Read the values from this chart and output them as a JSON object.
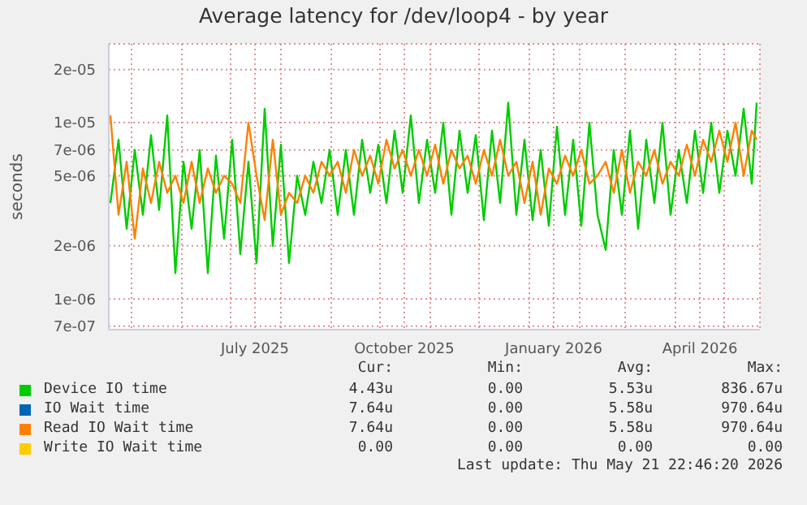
{
  "chart_data": {
    "type": "line",
    "title": "Average latency for /dev/loop4 - by year",
    "ylabel": "seconds",
    "log": "y",
    "grid": true,
    "legend": "bottom",
    "line_style": "solid",
    "marker": "none",
    "x": [
      "2025-04-18",
      "2025-04-23",
      "2025-04-28",
      "2025-05-03",
      "2025-05-08",
      "2025-05-13",
      "2025-05-18",
      "2025-05-23",
      "2025-05-28",
      "2025-06-02",
      "2025-06-07",
      "2025-06-12",
      "2025-06-17",
      "2025-06-22",
      "2025-06-27",
      "2025-07-02",
      "2025-07-07",
      "2025-07-12",
      "2025-07-17",
      "2025-07-22",
      "2025-07-27",
      "2025-08-01",
      "2025-08-06",
      "2025-08-11",
      "2025-08-16",
      "2025-08-21",
      "2025-08-26",
      "2025-08-31",
      "2025-09-05",
      "2025-09-10",
      "2025-09-15",
      "2025-09-20",
      "2025-09-25",
      "2025-09-30",
      "2025-10-05",
      "2025-10-10",
      "2025-10-15",
      "2025-10-20",
      "2025-10-25",
      "2025-10-30",
      "2025-11-04",
      "2025-11-09",
      "2025-11-14",
      "2025-11-19",
      "2025-11-24",
      "2025-11-29",
      "2025-12-04",
      "2025-12-09",
      "2025-12-14",
      "2025-12-19",
      "2025-12-24",
      "2025-12-29",
      "2026-01-03",
      "2026-01-08",
      "2026-01-13",
      "2026-01-18",
      "2026-01-23",
      "2026-01-28",
      "2026-02-02",
      "2026-02-07",
      "2026-02-12",
      "2026-02-17",
      "2026-02-22",
      "2026-02-27",
      "2026-03-04",
      "2026-03-09",
      "2026-03-14",
      "2026-03-19",
      "2026-03-24",
      "2026-03-29",
      "2026-04-03",
      "2026-04-08",
      "2026-04-13",
      "2026-04-18",
      "2026-04-23",
      "2026-04-28",
      "2026-05-03",
      "2026-05-08",
      "2026-05-13",
      "2026-05-18",
      "2026-05-21"
    ],
    "series": [
      {
        "name": "Device IO time",
        "color": "#00cc00",
        "values": [
          3.5e-06,
          8e-06,
          2.5e-06,
          7e-06,
          3e-06,
          8.5e-06,
          3.2e-06,
          1.1e-05,
          1.4e-06,
          6e-06,
          2.5e-06,
          7e-06,
          1.4e-06,
          6.5e-06,
          2.2e-06,
          8e-06,
          1.8e-06,
          6e-06,
          1.6e-06,
          1.2e-05,
          2e-06,
          7.5e-06,
          1.6e-06,
          5e-06,
          3e-06,
          6e-06,
          3.5e-06,
          7e-06,
          3e-06,
          7e-06,
          3e-06,
          8e-06,
          4e-06,
          7.5e-06,
          3.5e-06,
          9e-06,
          4e-06,
          1.1e-05,
          3.5e-06,
          8e-06,
          4e-06,
          1e-05,
          3e-06,
          9e-06,
          4e-06,
          8.5e-06,
          2.8e-06,
          9e-06,
          3.5e-06,
          1.3e-05,
          3e-06,
          8e-06,
          2.8e-06,
          7e-06,
          2.6e-06,
          9.5e-06,
          3e-06,
          8e-06,
          2.6e-06,
          1e-05,
          3e-06,
          1.9e-06,
          7e-06,
          3e-06,
          9e-06,
          2.5e-06,
          8e-06,
          3.5e-06,
          1e-05,
          3e-06,
          7e-06,
          3.5e-06,
          9e-06,
          4e-06,
          1e-05,
          4e-06,
          9e-06,
          5e-06,
          1.2e-05,
          4.5e-06,
          1.3e-05
        ]
      },
      {
        "name": "IO Wait time",
        "color": "#0066b3",
        "values": [
          null,
          null,
          null,
          null,
          null,
          null,
          null,
          null,
          null,
          null,
          null,
          null,
          null,
          null,
          null,
          null,
          null,
          null,
          null,
          null,
          null,
          null,
          null,
          null,
          null,
          null,
          null,
          null,
          null,
          null,
          null,
          null,
          null,
          null,
          null,
          null,
          null,
          null,
          null,
          null,
          null,
          null,
          null,
          null,
          null,
          null,
          null,
          null,
          null,
          null,
          null,
          null,
          null,
          null,
          null,
          null,
          null,
          null,
          null,
          null,
          null,
          null,
          null,
          null,
          null,
          null,
          null,
          null,
          null,
          null,
          null,
          null,
          null,
          null,
          null,
          null,
          null,
          null,
          null,
          null,
          null
        ]
      },
      {
        "name": "Read IO Wait time",
        "color": "#ff8000",
        "values": [
          1.1e-05,
          3e-06,
          6e-06,
          2.2e-06,
          5.5e-06,
          3.5e-06,
          6e-06,
          4e-06,
          5e-06,
          3.5e-06,
          6e-06,
          3.5e-06,
          5.5e-06,
          4e-06,
          5e-06,
          4.5e-06,
          3.5e-06,
          1e-05,
          5e-06,
          2.8e-06,
          8e-06,
          3e-06,
          4e-06,
          3.5e-06,
          5e-06,
          4e-06,
          6e-06,
          5e-06,
          6e-06,
          4e-06,
          7e-06,
          5e-06,
          6.5e-06,
          4.5e-06,
          8e-06,
          5.5e-06,
          7e-06,
          5e-06,
          7e-06,
          5e-06,
          7.5e-06,
          4.5e-06,
          7e-06,
          5.5e-06,
          6.5e-06,
          4.5e-06,
          7e-06,
          5e-06,
          8e-06,
          5e-06,
          6e-06,
          3.5e-06,
          6e-06,
          3e-06,
          5.5e-06,
          4.5e-06,
          6.5e-06,
          5e-06,
          7e-06,
          4.5e-06,
          5e-06,
          6e-06,
          4e-06,
          7e-06,
          4e-06,
          6e-06,
          5e-06,
          7e-06,
          4.5e-06,
          6e-06,
          5e-06,
          7.5e-06,
          5e-06,
          8e-06,
          6e-06,
          9e-06,
          6e-06,
          1e-05,
          5e-06,
          9e-06,
          8e-06
        ]
      },
      {
        "name": "Write IO Wait time",
        "color": "#ffcc00",
        "values": [
          null,
          null,
          null,
          null,
          null,
          null,
          null,
          null,
          null,
          null,
          null,
          null,
          null,
          null,
          null,
          null,
          null,
          null,
          null,
          null,
          null,
          null,
          null,
          null,
          null,
          null,
          null,
          null,
          null,
          null,
          null,
          null,
          null,
          null,
          null,
          null,
          null,
          null,
          null,
          null,
          null,
          null,
          null,
          null,
          null,
          null,
          null,
          null,
          null,
          null,
          null,
          null,
          null,
          null,
          null,
          null,
          null,
          null,
          null,
          null,
          null,
          null,
          null,
          null,
          null,
          null,
          null,
          null,
          null,
          null,
          null,
          null,
          null,
          null,
          null,
          null,
          null,
          null,
          null,
          null,
          null
        ]
      }
    ],
    "xlim": [
      "2025-04-17",
      "2026-05-23"
    ],
    "xticks": [
      {
        "value": "2025-05-01",
        "label": null
      },
      {
        "value": "2025-06-01",
        "label": null
      },
      {
        "value": "2025-07-01",
        "label": null
      },
      {
        "value": "2025-07-16",
        "label": "July 2025"
      },
      {
        "value": "2025-08-01",
        "label": null
      },
      {
        "value": "2025-09-01",
        "label": null
      },
      {
        "value": "2025-10-01",
        "label": null
      },
      {
        "value": "2025-10-16",
        "label": "October 2025"
      },
      {
        "value": "2025-11-01",
        "label": null
      },
      {
        "value": "2025-12-01",
        "label": null
      },
      {
        "value": "2026-01-01",
        "label": null
      },
      {
        "value": "2026-01-16",
        "label": "January 2026"
      },
      {
        "value": "2026-02-01",
        "label": null
      },
      {
        "value": "2026-03-01",
        "label": null
      },
      {
        "value": "2026-04-01",
        "label": null
      },
      {
        "value": "2026-04-16",
        "label": "April 2026"
      },
      {
        "value": "2026-05-01",
        "label": null
      }
    ],
    "ylim": [
      6.7e-07,
      2.8e-05
    ],
    "yticks": [
      {
        "value": 7e-07,
        "label": "7e-07"
      },
      {
        "value": 1e-06,
        "label": "1e-06"
      },
      {
        "value": 2e-06,
        "label": "2e-06"
      },
      {
        "value": 5e-06,
        "label": "5e-06"
      },
      {
        "value": 7e-06,
        "label": "7e-06"
      },
      {
        "value": 1e-05,
        "label": "1e-05"
      },
      {
        "value": 2e-05,
        "label": "2e-05"
      }
    ],
    "annotations": [
      "Cur:",
      "Min:",
      "Avg:",
      "Max:",
      "4.43u",
      "0.00",
      "5.53u",
      "836.67u",
      "7.64u",
      "0.00",
      "5.58u",
      "970.64u",
      "7.64u",
      "0.00",
      "5.58u",
      "970.64u",
      "0.00",
      "0.00",
      "0.00",
      "0.00",
      "Last update: Thu May 21 22:46:20 2026"
    ]
  }
}
